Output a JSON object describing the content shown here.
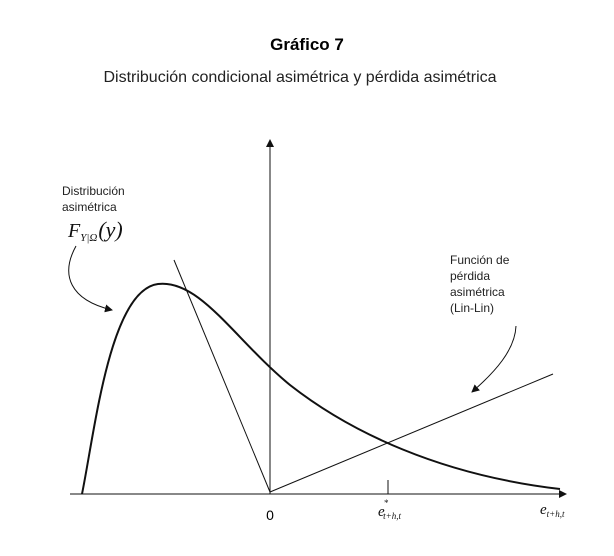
{
  "header": {
    "title": "Gráfico 7",
    "subtitle": "Distribución condicional asimétrica y pérdida asimétrica"
  },
  "annotations": {
    "distribution": {
      "lines": [
        "Distribución",
        "asimétrica"
      ],
      "symbol": {
        "base": "F",
        "subscript": "Y|Ω",
        "argument": "(y)"
      }
    },
    "loss": {
      "lines": [
        "Función de",
        "pérdida",
        "asimétrica",
        "(Lin-Lin)"
      ]
    }
  },
  "axis": {
    "origin": "0",
    "optimal_error": {
      "base": "e",
      "superscript": "*",
      "subscript": "t+h,t"
    },
    "error": {
      "base": "e",
      "subscript": "t+h,t"
    }
  }
}
